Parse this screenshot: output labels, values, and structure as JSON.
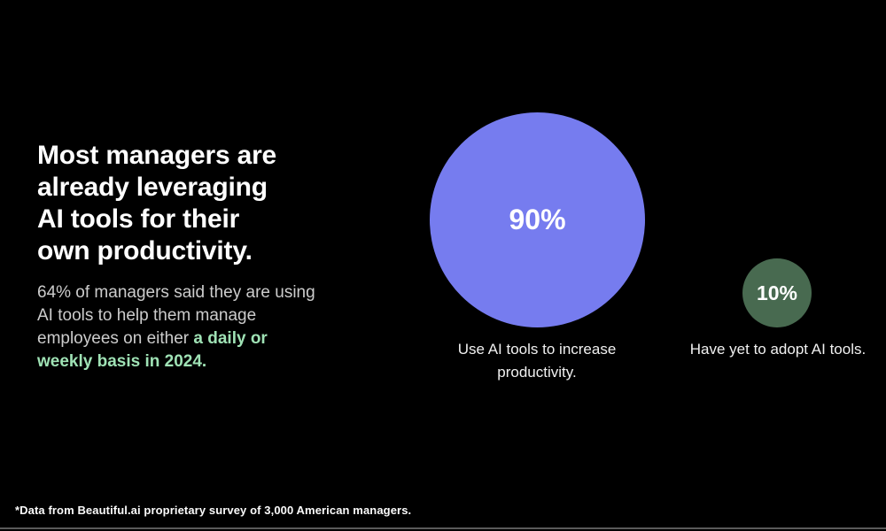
{
  "slide": {
    "heading": "Most managers are\nalready leveraging\nAI tools for their\nown productivity.",
    "subtitle": {
      "line1": "64% of managers said they are using",
      "line2": "AI tools to help them manage",
      "line3_regular": "employees on either ",
      "line3_highlight": "a daily or",
      "line4_highlight": "weekly basis in 2024."
    },
    "footnote": "*Data from Beautiful.ai proprietary survey of 3,000 American managers."
  },
  "bubbles": [
    {
      "value": 90,
      "value_label": "90%",
      "caption": "Use AI tools to increase\nproductivity.",
      "color": "#767cef"
    },
    {
      "value": 10,
      "value_label": "10%",
      "caption": "Have yet to adopt AI tools.",
      "color": "#486a50"
    }
  ],
  "colors": {
    "background": "#000000",
    "heading_text": "#ffffff",
    "subtitle_text": "#cccccc",
    "highlight_green": "#9fe2b5",
    "bubble_large_fill": "#767cef",
    "bubble_small_fill": "#486a50",
    "bubble_label_text": "#ffffff",
    "bottom_rule": "#5a5a5a"
  },
  "chart_data": {
    "type": "pie",
    "variant": "proportional-area-circles",
    "title": "Most managers are already leveraging AI tools for their own productivity.",
    "subtitle": "64% of managers said they are using AI tools to help them manage employees on either a daily or weekly basis in 2024.",
    "categories": [
      "Use AI tools to increase productivity.",
      "Have yet to adopt AI tools."
    ],
    "values": [
      90,
      10
    ],
    "data_labels": [
      "90%",
      "10%"
    ],
    "colors": [
      "#767cef",
      "#486a50"
    ],
    "legend_position": "none",
    "grid": false,
    "source_note": "*Data from Beautiful.ai proprietary survey of 3,000 American managers."
  }
}
